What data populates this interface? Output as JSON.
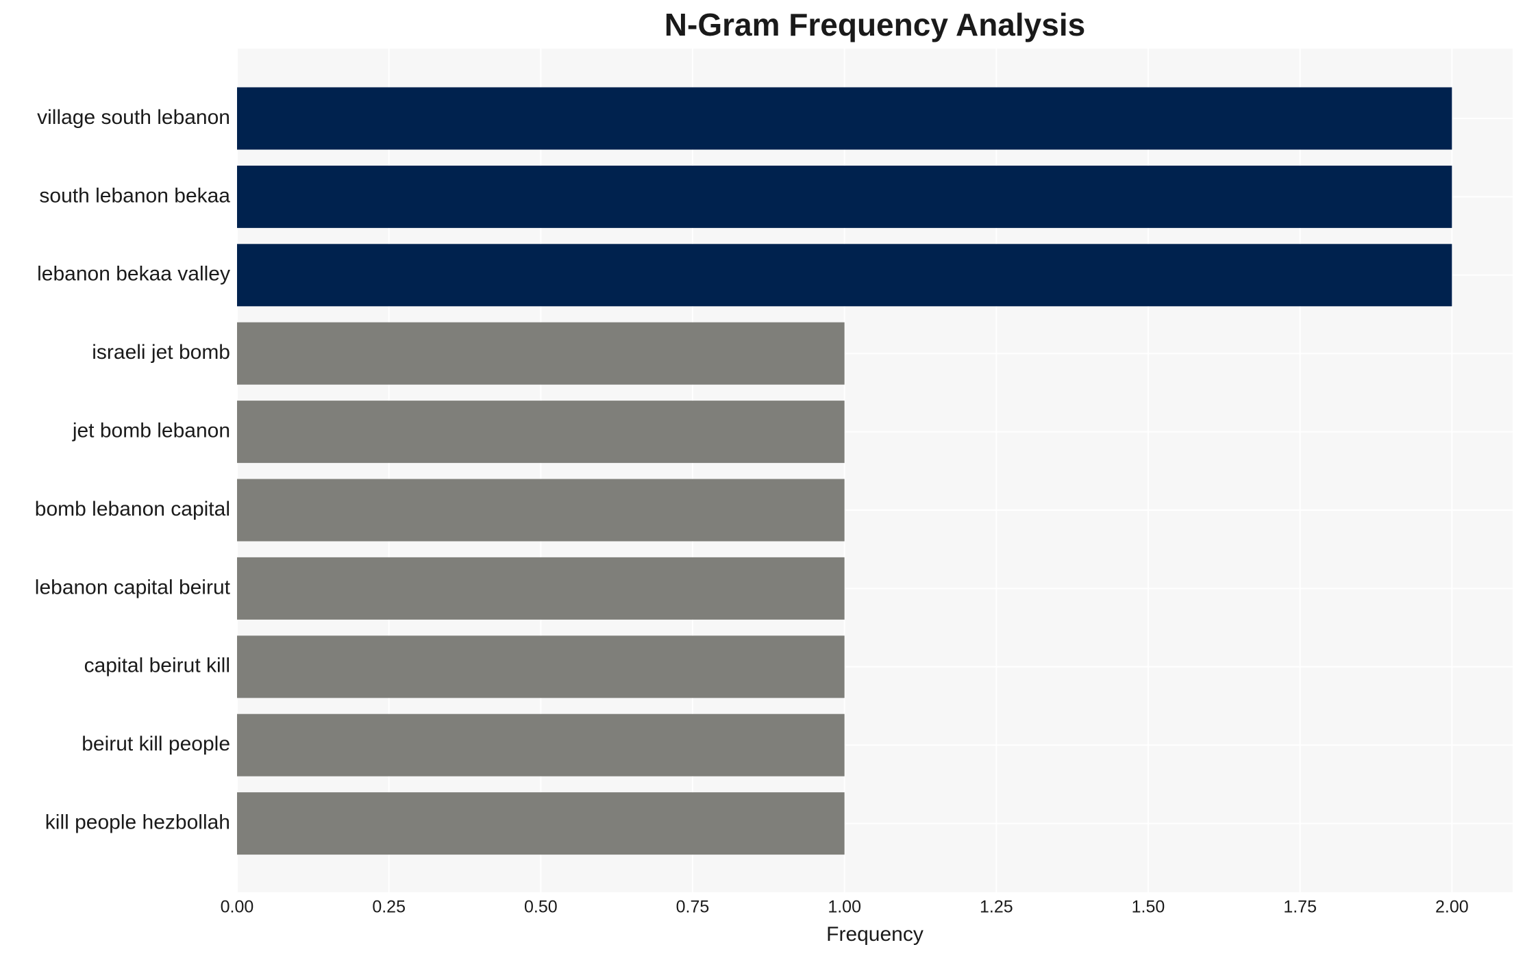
{
  "chart_data": {
    "type": "barh",
    "title": "N-Gram Frequency Analysis",
    "x_label": "Frequency",
    "categories": [
      "village south lebanon",
      "south lebanon bekaa",
      "lebanon bekaa valley",
      "israeli jet bomb",
      "jet bomb lebanon",
      "bomb lebanon capital",
      "lebanon capital beirut",
      "capital beirut kill",
      "beirut kill people",
      "kill people hezbollah"
    ],
    "values": [
      2,
      2,
      2,
      1,
      1,
      1,
      1,
      1,
      1,
      1
    ],
    "colors": [
      "#00224e",
      "#00224e",
      "#00224e",
      "#7f7f7a",
      "#7f7f7a",
      "#7f7f7a",
      "#7f7f7a",
      "#7f7f7a",
      "#7f7f7a",
      "#7f7f7a"
    ],
    "xlim": [
      0,
      2.1
    ],
    "xticks": [
      {
        "value": 0,
        "label": "0.00"
      },
      {
        "value": 0.25,
        "label": "0.25"
      },
      {
        "value": 0.5,
        "label": "0.50"
      },
      {
        "value": 0.75,
        "label": "0.75"
      },
      {
        "value": 1,
        "label": "1.00"
      },
      {
        "value": 1.25,
        "label": "1.25"
      },
      {
        "value": 1.5,
        "label": "1.50"
      },
      {
        "value": 1.75,
        "label": "1.75"
      },
      {
        "value": 2,
        "label": "2.00"
      }
    ],
    "grid": true
  }
}
